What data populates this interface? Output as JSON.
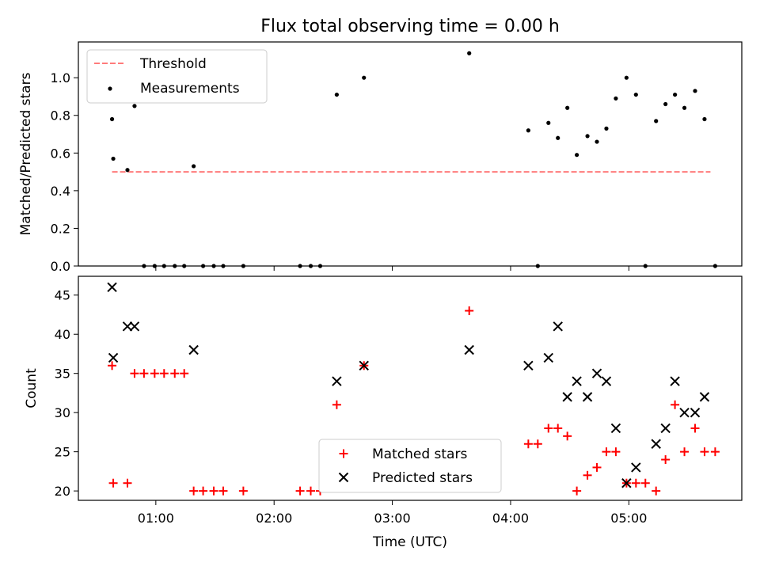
{
  "chart_data": [
    {
      "type": "scatter",
      "title": "Flux total observing time = 0.00 h",
      "xlabel": "",
      "ylabel": "Matched/Predicted stars",
      "x_unit": "hours since 00:00 UTC",
      "xlim": [
        0.345,
        5.955
      ],
      "ylim": [
        0.0,
        1.19
      ],
      "yticks": [
        "0.0",
        "0.2",
        "0.4",
        "0.6",
        "0.8",
        "1.0"
      ],
      "legend_position": "upper-left",
      "series": [
        {
          "name": "Threshold",
          "style": "dashed-line",
          "color": "#ff7b7b",
          "x": [
            0.63,
            5.69
          ],
          "y": [
            0.5,
            0.5
          ]
        },
        {
          "name": "Measurements",
          "style": "dot",
          "color": "#000000",
          "x": [
            0.63,
            0.64,
            0.76,
            0.82,
            0.9,
            0.99,
            1.07,
            1.16,
            1.24,
            1.32,
            1.4,
            1.49,
            1.57,
            1.74,
            2.22,
            2.31,
            2.39,
            2.53,
            2.76,
            3.65,
            4.15,
            4.23,
            4.32,
            4.4,
            4.48,
            4.56,
            4.65,
            4.73,
            4.81,
            4.89,
            4.98,
            5.06,
            5.14,
            5.23,
            5.31,
            5.39,
            5.47,
            5.56,
            5.64,
            5.73
          ],
          "y": [
            0.78,
            0.57,
            0.51,
            0.85,
            0.0,
            0.0,
            0.0,
            0.0,
            0.0,
            0.53,
            0.0,
            0.0,
            0.0,
            0.0,
            0.0,
            0.0,
            0.0,
            0.91,
            1.0,
            1.13,
            0.72,
            0.0,
            0.76,
            0.68,
            0.84,
            0.59,
            0.69,
            0.66,
            0.73,
            0.89,
            1.0,
            0.91,
            0.0,
            0.77,
            0.86,
            0.91,
            0.84,
            0.93,
            0.78,
            0.0
          ]
        }
      ]
    },
    {
      "type": "scatter",
      "title": "",
      "xlabel": "Time (UTC)",
      "ylabel": "Count",
      "x_unit": "hours since 00:00 UTC",
      "xlim": [
        0.345,
        5.955
      ],
      "ylim": [
        18.8,
        47.4
      ],
      "xticks": [
        "01:00",
        "02:00",
        "03:00",
        "04:00",
        "05:00"
      ],
      "yticks": [
        "20",
        "25",
        "30",
        "35",
        "40",
        "45"
      ],
      "legend_position": "lower-center",
      "series": [
        {
          "name": "Matched stars",
          "marker": "plus",
          "color": "#ff0000",
          "x": [
            0.63,
            0.64,
            0.76,
            0.82,
            0.9,
            0.99,
            1.07,
            1.16,
            1.24,
            1.32,
            1.4,
            1.49,
            1.57,
            1.74,
            2.22,
            2.31,
            2.39,
            2.53,
            2.76,
            3.65,
            4.15,
            4.23,
            4.32,
            4.4,
            4.48,
            4.56,
            4.65,
            4.73,
            4.81,
            4.89,
            4.98,
            5.06,
            5.14,
            5.23,
            5.31,
            5.39,
            5.47,
            5.56,
            5.64,
            5.73
          ],
          "y": [
            36,
            21,
            21,
            35,
            35,
            35,
            35,
            35,
            35,
            20,
            20,
            20,
            20,
            20,
            20,
            20,
            20,
            31,
            36,
            43,
            26,
            26,
            28,
            28,
            27,
            20,
            22,
            23,
            25,
            25,
            21,
            21,
            21,
            20,
            24,
            31,
            25,
            28,
            25,
            25
          ]
        },
        {
          "name": "Predicted stars",
          "marker": "x",
          "color": "#000000",
          "x": [
            0.63,
            0.64,
            0.76,
            0.82,
            1.32,
            2.53,
            2.76,
            3.65,
            4.15,
            4.32,
            4.4,
            4.48,
            4.56,
            4.65,
            4.73,
            4.81,
            4.89,
            4.98,
            5.06,
            5.23,
            5.31,
            5.39,
            5.47,
            5.56,
            5.64
          ],
          "y": [
            46,
            37,
            41,
            41,
            38,
            34,
            36,
            38,
            36,
            37,
            41,
            32,
            34,
            32,
            35,
            34,
            28,
            21,
            23,
            26,
            28,
            34,
            30,
            30,
            32
          ]
        }
      ]
    }
  ]
}
